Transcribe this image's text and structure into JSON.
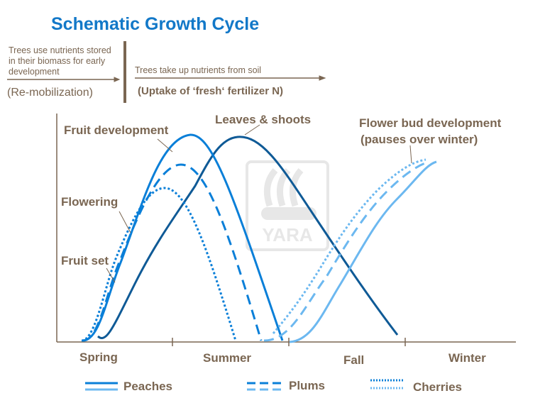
{
  "title": "Schematic Growth Cycle",
  "phases": {
    "remobilization_desc": "Trees use nutrients stored in their biomass for early development",
    "remobilization_desc_lines": [
      "Trees use nutrients stored",
      "in their biomass for early",
      "development"
    ],
    "remobilization_label": "(Re-mobilization)",
    "uptake_desc": "Trees take up nutrients from soil",
    "uptake_label": "(Uptake of ‘fresh‘ fertilizer N)"
  },
  "stage_labels": {
    "fruit_development": "Fruit development",
    "leaves_shoots": "Leaves & shoots",
    "flower_bud_line1": "Flower bud development",
    "flower_bud_line2": "(pauses over winter)",
    "flowering": "Flowering",
    "fruit_set": "Fruit set"
  },
  "seasons": [
    "Spring",
    "Summer",
    "Fall",
    "Winter"
  ],
  "legend": [
    {
      "label": "Peaches",
      "style": "solid"
    },
    {
      "label": "Plums",
      "style": "dashed"
    },
    {
      "label": "Cherries",
      "style": "dotted"
    }
  ],
  "watermark": "YARA",
  "colors": {
    "fruit": "#0a7fd8",
    "leaves": "#0f5a96",
    "flower_bud": "#6cb8f0",
    "text": "#7a6652",
    "title": "#1278c8"
  }
}
